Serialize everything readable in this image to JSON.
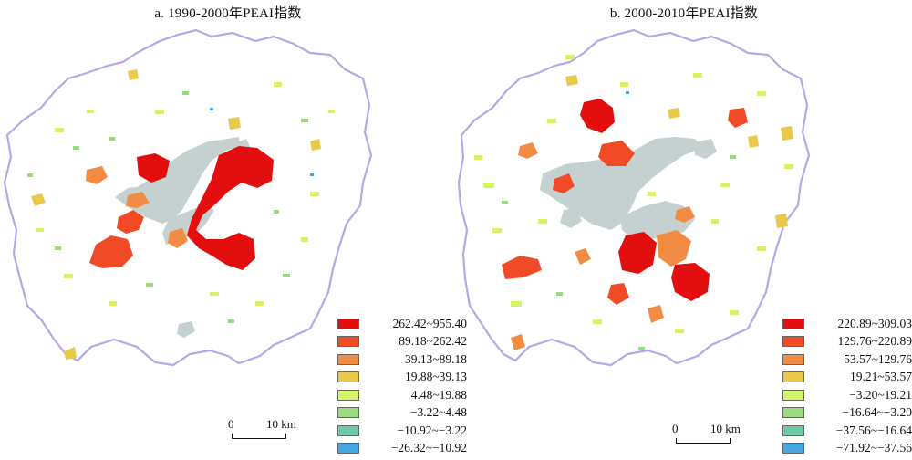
{
  "panels": [
    {
      "title": "a. 1990-2000年PEAI指数",
      "legend": [
        {
          "label": "262.42~955.40",
          "color": "#e30e0e"
        },
        {
          "label": "89.18~262.42",
          "color": "#f04b26"
        },
        {
          "label": "39.13~89.18",
          "color": "#f28c44"
        },
        {
          "label": "19.88~39.13",
          "color": "#e9c84a"
        },
        {
          "label": "4.48~19.88",
          "color": "#d4f26a"
        },
        {
          "label": "−3.22~4.48",
          "color": "#99dc7e"
        },
        {
          "label": "−10.92~−3.22",
          "color": "#6fc7a6"
        },
        {
          "label": "−26.32~−10.92",
          "color": "#45a6e0"
        }
      ],
      "scale": {
        "zero": "0",
        "distance": "10 km"
      }
    },
    {
      "title": "b. 2000-2010年PEAI指数",
      "legend": [
        {
          "label": "220.89~309.03",
          "color": "#e30e0e"
        },
        {
          "label": "129.76~220.89",
          "color": "#f04b26"
        },
        {
          "label": "53.57~129.76",
          "color": "#f28c44"
        },
        {
          "label": "19.21~53.57",
          "color": "#e9c84a"
        },
        {
          "label": "−3.20~19.21",
          "color": "#d4f26a"
        },
        {
          "label": "−16.64~−3.20",
          "color": "#99dc7e"
        },
        {
          "label": "−37.56~−16.64",
          "color": "#6fc7a6"
        },
        {
          "label": "−71.92~−37.56",
          "color": "#45a6e0"
        }
      ],
      "scale": {
        "zero": "0",
        "distance": "10 km"
      }
    }
  ],
  "colors": {
    "boundary": "#b9a6e8",
    "water": "#c5d1d1"
  }
}
